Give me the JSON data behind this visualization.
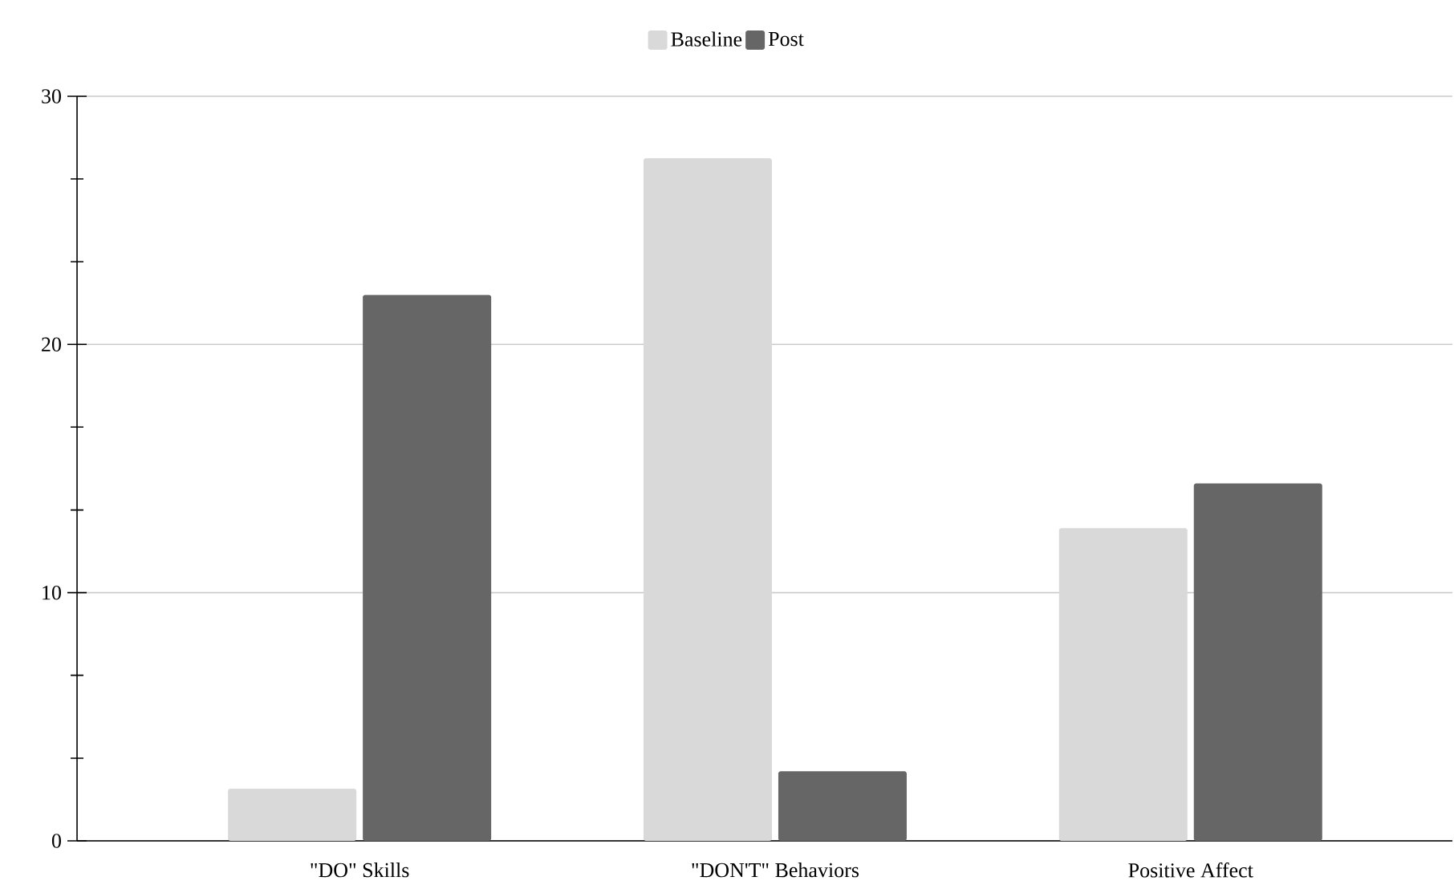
{
  "chart_data": {
    "type": "bar",
    "categories": [
      "\"DO\" Skills",
      "\"DON'T\" Behaviors",
      "Positive Affect"
    ],
    "series": [
      {
        "name": "Baseline",
        "color": "#d9d9d9",
        "values": [
          2.1,
          27.5,
          12.6
        ]
      },
      {
        "name": "Post",
        "color": "#666666",
        "values": [
          22.0,
          2.8,
          14.4
        ]
      }
    ],
    "ylim": [
      0,
      30
    ],
    "yticks": [
      0,
      {
        "value": 3.33,
        "label": null
      },
      {
        "value": 6.67,
        "label": null
      },
      10,
      {
        "value": 13.33,
        "label": null
      },
      {
        "value": 16.67,
        "label": null
      },
      20,
      {
        "value": 23.33,
        "label": null
      },
      {
        "value": 26.67,
        "label": null
      },
      30
    ],
    "grid": "y",
    "legend": "top"
  }
}
